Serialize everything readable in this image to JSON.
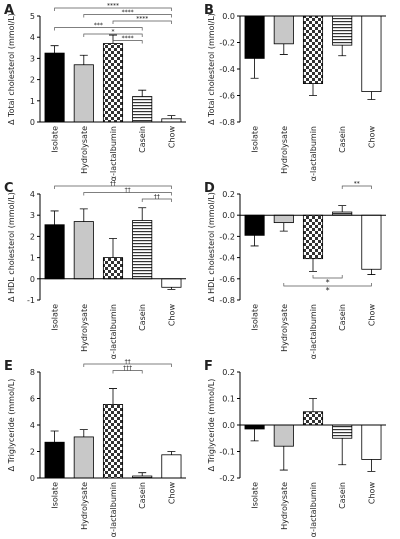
{
  "chart_data": [
    {
      "type": "bar",
      "panel": "A",
      "ylabel": "Δ Total cholesterol (mmol/L)",
      "categories": [
        "Isolate",
        "Hydrolysate",
        "α-lactalbumin",
        "Casein",
        "Chow"
      ],
      "values": [
        3.25,
        2.7,
        3.7,
        1.2,
        0.15
      ],
      "errors": [
        0.35,
        0.45,
        0.4,
        0.3,
        0.15
      ],
      "fills": [
        "#000000",
        "#c8c8c8",
        "checker",
        "stripes",
        "#ffffff"
      ],
      "ylim": [
        0,
        5
      ],
      "yticks": [
        0,
        1,
        2,
        3,
        4,
        5
      ],
      "brackets": [
        {
          "from": 0,
          "to": 4,
          "label": "****"
        },
        {
          "from": 1,
          "to": 4,
          "label": "****"
        },
        {
          "from": 2,
          "to": 4,
          "label": "****"
        },
        {
          "from": 0,
          "to": 3,
          "label": "***"
        },
        {
          "from": 1,
          "to": 3,
          "label": "*"
        },
        {
          "from": 2,
          "to": 3,
          "label": "****"
        }
      ]
    },
    {
      "type": "bar",
      "panel": "B",
      "ylabel": "Δ Total cholesterol (mmol/L)",
      "categories": [
        "Isolate",
        "Hydrolysate",
        "α-lactalbumin",
        "Casein",
        "Chow"
      ],
      "values": [
        -0.32,
        -0.21,
        -0.51,
        -0.22,
        -0.57
      ],
      "errors": [
        0.15,
        0.08,
        0.09,
        0.08,
        0.06
      ],
      "fills": [
        "#000000",
        "#c8c8c8",
        "checker",
        "stripes",
        "#ffffff"
      ],
      "ylim": [
        -0.8,
        0
      ],
      "yticks": [
        -0.8,
        -0.6,
        -0.4,
        -0.2,
        {
          "value": 0,
          "label": "0.0"
        }
      ],
      "brackets": []
    },
    {
      "type": "bar",
      "panel": "C",
      "ylabel": "Δ HDL cholesterol (mmol/L)",
      "categories": [
        "Isolate",
        "Hydrolysate",
        "α-lactalbumin",
        "Casein",
        "Chow"
      ],
      "values": [
        2.55,
        2.7,
        1.0,
        2.75,
        -0.4
      ],
      "errors": [
        0.65,
        0.6,
        0.9,
        0.6,
        0.1
      ],
      "fills": [
        "#000000",
        "#c8c8c8",
        "checker",
        "stripes",
        "#ffffff"
      ],
      "ylim": [
        -1,
        4
      ],
      "yticks": [
        -1,
        0,
        1,
        2,
        3,
        4
      ],
      "brackets": [
        {
          "from": 0,
          "to": 4,
          "label": "††"
        },
        {
          "from": 1,
          "to": 4,
          "label": "††"
        },
        {
          "from": 3,
          "to": 4,
          "label": "††"
        }
      ]
    },
    {
      "type": "bar",
      "panel": "D",
      "ylabel": "Δ HDL cholesterol (mmol/L)",
      "categories": [
        "Isolate",
        "Hydrolysate",
        "α-lactalbumin",
        "Casein",
        "Chow"
      ],
      "values": [
        -0.19,
        -0.07,
        -0.41,
        0.03,
        -0.51
      ],
      "errors": [
        0.1,
        0.08,
        0.12,
        0.06,
        0.05
      ],
      "fills": [
        "#000000",
        "#c8c8c8",
        "checker",
        "stripes",
        "#ffffff"
      ],
      "ylim": [
        -0.8,
        0.2
      ],
      "yticks": [
        -0.8,
        -0.6,
        -0.4,
        -0.2,
        {
          "value": 0,
          "label": "0.0"
        },
        0.2
      ],
      "brackets": [
        {
          "from": 3,
          "to": 4,
          "label": "**"
        },
        {
          "from": 2,
          "to": 3,
          "label": "*",
          "side": "below"
        },
        {
          "from": 1,
          "to": 4,
          "label": "*",
          "side": "below"
        }
      ]
    },
    {
      "type": "bar",
      "panel": "E",
      "ylabel": "Δ Triglyceride (mmol/L)",
      "categories": [
        "Isolate",
        "Hydrolysate",
        "α-lactalbumin",
        "Casein",
        "Chow"
      ],
      "values": [
        2.7,
        3.1,
        5.55,
        0.15,
        1.75
      ],
      "errors": [
        0.85,
        0.55,
        1.2,
        0.25,
        0.25
      ],
      "fills": [
        "#000000",
        "#c8c8c8",
        "checker",
        "stripes",
        "#ffffff"
      ],
      "ylim": [
        0,
        8
      ],
      "yticks": [
        0,
        2,
        4,
        6,
        8
      ],
      "brackets": [
        {
          "from": 1,
          "to": 4,
          "label": "††"
        },
        {
          "from": 2,
          "to": 3,
          "label": "†††"
        }
      ]
    },
    {
      "type": "bar",
      "panel": "F",
      "ylabel": "Δ Triglyceride (mmol/L)",
      "categories": [
        "Isolate",
        "Hydrolysate",
        "α-lactalbumin",
        "Casein",
        "Chow"
      ],
      "values": [
        -0.015,
        -0.08,
        0.05,
        -0.05,
        -0.13
      ],
      "errors": [
        0.045,
        0.09,
        0.05,
        0.1,
        0.045
      ],
      "fills": [
        "#000000",
        "#c8c8c8",
        "checker",
        "stripes",
        "#ffffff"
      ],
      "ylim": [
        -0.2,
        0.2
      ],
      "yticks": [
        -0.2,
        -0.1,
        {
          "value": 0,
          "label": "0.0"
        },
        0.1,
        0.2
      ],
      "brackets": []
    }
  ]
}
